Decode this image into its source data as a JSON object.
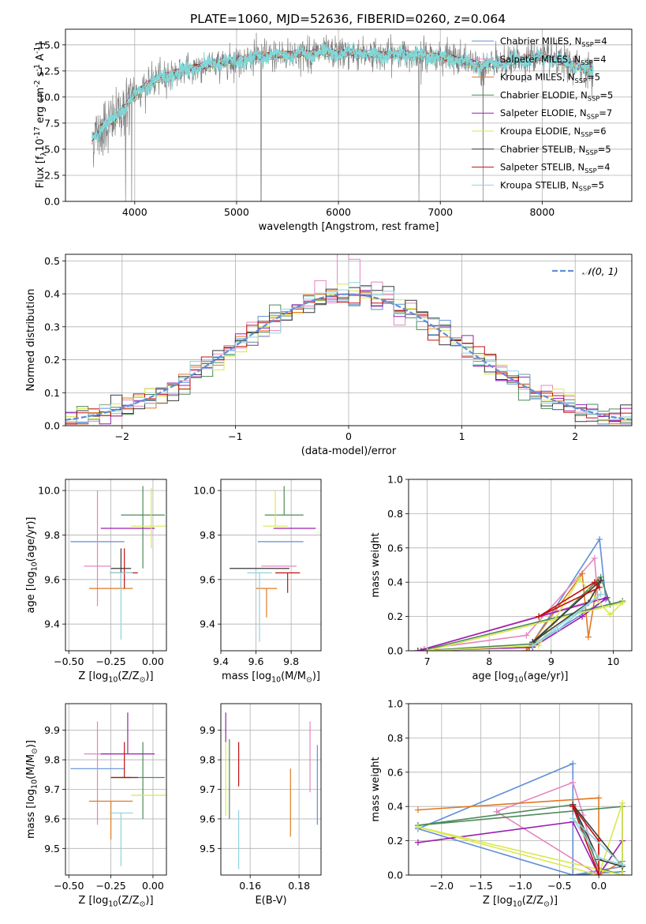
{
  "figure_title": "PLATE=1060, MJD=52636, FIBERID=0260, z=0.064",
  "models": [
    {
      "name": "Chabrier MILES, N$_{SSP}$=4",
      "color": "#5f8fd8"
    },
    {
      "name": "Salpeter MILES, N$_{SSP}$=4",
      "color": "#e585c0"
    },
    {
      "name": "Kroupa MILES, N$_{SSP}$=5",
      "color": "#e07a22"
    },
    {
      "name": "Chabrier ELODIE, N$_{SSP}$=5",
      "color": "#4e8a5a"
    },
    {
      "name": "Salpeter ELODIE, N$_{SSP}$=7",
      "color": "#9a1fb0"
    },
    {
      "name": "Kroupa ELODIE, N$_{SSP}$=6",
      "color": "#d8e84e"
    },
    {
      "name": "Chabrier STELIB, N$_{SSP}$=5",
      "color": "#3a3a3a"
    },
    {
      "name": "Salpeter STELIB, N$_{SSP}$=4",
      "color": "#c01010"
    },
    {
      "name": "Kroupa STELIB, N$_{SSP}$=5",
      "color": "#8fd4dc"
    }
  ],
  "chart_data": [
    {
      "id": "spectrum",
      "type": "line",
      "title": "PLATE=1060, MJD=52636, FIBERID=0260, z=0.064",
      "xlabel": "wavelength [Angstrom, rest frame]",
      "ylabel": "Flux [f$_{\\lambda}$10$^{-17}$ erg cm$^{-2}$ s$^{-1}$ A$^{-1}$]",
      "xlim": [
        3320,
        8880
      ],
      "ylim": [
        0,
        16.5
      ],
      "xticks": [
        4000,
        5000,
        6000,
        7000,
        8000
      ],
      "yticks": [
        0.0,
        2.5,
        5.0,
        7.5,
        10.0,
        12.5,
        15.0
      ],
      "legend": "right, inside",
      "data_color": "#808080",
      "model_color": "#7fd8d8",
      "data_envelope": {
        "x": [
          3580,
          3700,
          3800,
          3900,
          4000,
          4100,
          4200,
          4400,
          4600,
          4800,
          5000,
          5200,
          5400,
          5600,
          5800,
          6000,
          6200,
          6400,
          6600,
          6800,
          7000,
          7200,
          7400,
          7600,
          7800,
          8000,
          8200,
          8400,
          8500
        ],
        "y": [
          6.0,
          7.3,
          7.8,
          9.0,
          10.2,
          11.0,
          11.6,
          12.3,
          12.8,
          13.2,
          13.5,
          13.8,
          14.0,
          14.1,
          14.2,
          14.2,
          14.2,
          14.0,
          14.1,
          14.0,
          13.8,
          13.5,
          13.0,
          13.2,
          13.6,
          13.8,
          13.3,
          12.8,
          12.5
        ]
      },
      "spikes_x": [
        3910,
        3970,
        5240,
        6790,
        7420
      ]
    },
    {
      "id": "residual_hist",
      "type": "histogram",
      "xlabel": "(data-model)/error",
      "ylabel": "Normed distribution",
      "xlim": [
        -2.5,
        2.5
      ],
      "ylim": [
        0,
        0.52
      ],
      "xticks": [
        -2,
        -1,
        0,
        1,
        2
      ],
      "yticks": [
        0.0,
        0.1,
        0.2,
        0.3,
        0.4,
        0.5
      ],
      "legend_label": "$\\mathcal{N}(0,1)$",
      "legend_color": "#5f8fd8",
      "bin_width": 0.1,
      "bins_from": -2.5
    },
    {
      "id": "age_vs_Z",
      "type": "errorbar",
      "xlabel": "Z [log$_{10}$(Z/Z$_\\odot$)]",
      "ylabel": "age  [log$_{10}$(age/yr)]",
      "xlim": [
        -0.52,
        0.08
      ],
      "ylim": [
        9.28,
        10.05
      ],
      "xticks": [
        -0.5,
        -0.25,
        0.0
      ],
      "yticks": [
        9.4,
        9.6,
        9.8,
        10.0
      ],
      "points": [
        {
          "model": 0,
          "x": -0.33,
          "xerr": 0.16,
          "y": 9.77,
          "yerr_lo": 0.0,
          "yerr_hi": 0.0
        },
        {
          "model": 1,
          "x": -0.33,
          "xerr": 0.08,
          "y": 9.66,
          "yerr_lo": 0.18,
          "yerr_hi": 0.34
        },
        {
          "model": 2,
          "x": -0.25,
          "xerr": 0.13,
          "y": 9.56,
          "yerr_lo": 0.0,
          "yerr_hi": 0.0
        },
        {
          "model": 3,
          "x": -0.06,
          "xerr": 0.13,
          "y": 9.89,
          "yerr_lo": 0.24,
          "yerr_hi": 0.13
        },
        {
          "model": 4,
          "x": -0.15,
          "xerr": 0.16,
          "y": 9.83,
          "yerr_lo": 0.0,
          "yerr_hi": 0.0
        },
        {
          "model": 5,
          "x": -0.01,
          "xerr": 0.12,
          "y": 9.84,
          "yerr_lo": 0.1,
          "yerr_hi": 0.17
        },
        {
          "model": 6,
          "x": -0.19,
          "xerr": 0.06,
          "y": 9.65,
          "yerr_lo": 0.09,
          "yerr_hi": 0.09
        },
        {
          "model": 7,
          "x": -0.17,
          "xerr": 0.08,
          "y": 9.63,
          "yerr_lo": 0.07,
          "yerr_hi": 0.11
        },
        {
          "model": 8,
          "x": -0.19,
          "xerr": 0.07,
          "y": 9.63,
          "yerr_lo": 0.3,
          "yerr_hi": 0.0
        }
      ]
    },
    {
      "id": "age_vs_mass",
      "type": "errorbar",
      "xlabel": "mass [log$_{10}$(M/M$_\\odot$)]",
      "ylabel": "",
      "xlim": [
        9.4,
        9.97
      ],
      "ylim": [
        9.28,
        10.05
      ],
      "xticks": [
        9.4,
        9.6,
        9.8
      ],
      "yticks": [
        9.4,
        9.6,
        9.8,
        10.0
      ],
      "points": [
        {
          "model": 0,
          "x": 9.74,
          "xerr": 0.13,
          "y": 9.77,
          "yerr_lo": 0.0,
          "yerr_hi": 0.0
        },
        {
          "model": 1,
          "x": 9.73,
          "xerr": 0.1,
          "y": 9.66,
          "yerr_lo": 0.0,
          "yerr_hi": 0.0
        },
        {
          "model": 2,
          "x": 9.66,
          "xerr": 0.06,
          "y": 9.56,
          "yerr_lo": 0.13,
          "yerr_hi": 0.0
        },
        {
          "model": 3,
          "x": 9.76,
          "xerr": 0.11,
          "y": 9.89,
          "yerr_lo": 0.0,
          "yerr_hi": 0.13
        },
        {
          "model": 4,
          "x": 9.82,
          "xerr": 0.12,
          "y": 9.83,
          "yerr_lo": 0.0,
          "yerr_hi": 0.0
        },
        {
          "model": 5,
          "x": 9.71,
          "xerr": 0.07,
          "y": 9.84,
          "yerr_lo": 0.0,
          "yerr_hi": 0.16
        },
        {
          "model": 6,
          "x": 9.62,
          "xerr": 0.17,
          "y": 9.65,
          "yerr_lo": 0.0,
          "yerr_hi": 0.0
        },
        {
          "model": 7,
          "x": 9.78,
          "xerr": 0.07,
          "y": 9.63,
          "yerr_lo": 0.09,
          "yerr_hi": 0.0
        },
        {
          "model": 8,
          "x": 9.62,
          "xerr": 0.07,
          "y": 9.63,
          "yerr_lo": 0.31,
          "yerr_hi": 0.0
        }
      ]
    },
    {
      "id": "weight_vs_age",
      "type": "line",
      "xlabel": "age  [log$_{10}$(age/yr)]",
      "ylabel": "mass weight",
      "xlim": [
        6.7,
        10.3
      ],
      "ylim": [
        0,
        1.0
      ],
      "xticks": [
        7,
        8,
        9,
        10
      ],
      "yticks": [
        0.0,
        0.2,
        0.4,
        0.6,
        0.8,
        1.0
      ],
      "series": [
        {
          "model": 0,
          "x": [
            8.65,
            9.78,
            9.88,
            8.65
          ],
          "y": [
            0.02,
            0.65,
            0.3,
            0.02
          ]
        },
        {
          "model": 1,
          "x": [
            6.95,
            8.6,
            9.7,
            9.75,
            6.95
          ],
          "y": [
            0.01,
            0.09,
            0.54,
            0.3,
            0.01
          ]
        },
        {
          "model": 2,
          "x": [
            8.6,
            9.5,
            9.6,
            9.75,
            8.6
          ],
          "y": [
            0.0,
            0.45,
            0.08,
            0.41,
            0.0
          ]
        },
        {
          "model": 3,
          "x": [
            6.9,
            8.7,
            9.8,
            9.95,
            10.15,
            6.9
          ],
          "y": [
            0.0,
            0.04,
            0.43,
            0.27,
            0.29,
            0.0
          ]
        },
        {
          "model": 4,
          "x": [
            6.85,
            8.7,
            9.5,
            9.9,
            6.85
          ],
          "y": [
            0.0,
            0.02,
            0.2,
            0.31,
            0.0
          ]
        },
        {
          "model": 5,
          "x": [
            7.0,
            8.8,
            9.45,
            9.95,
            10.15,
            7.0
          ],
          "y": [
            0.0,
            0.03,
            0.42,
            0.21,
            0.28,
            0.0
          ]
        },
        {
          "model": 6,
          "x": [
            8.7,
            9.6,
            9.8,
            8.7
          ],
          "y": [
            0.05,
            0.28,
            0.41,
            0.05
          ]
        },
        {
          "model": 7,
          "x": [
            8.8,
            9.7,
            9.78,
            8.8
          ],
          "y": [
            0.2,
            0.4,
            0.37,
            0.2
          ]
        },
        {
          "model": 8,
          "x": [
            8.7,
            9.1,
            9.8,
            8.7
          ],
          "y": [
            0.03,
            0.12,
            0.33,
            0.03
          ]
        }
      ]
    },
    {
      "id": "mass_vs_Z",
      "type": "errorbar",
      "xlabel": "Z [log$_{10}$(Z/Z$_\\odot$)]",
      "ylabel": "mass [log$_{10}$(M/M$_\\odot$)]",
      "xlim": [
        -0.52,
        0.08
      ],
      "ylim": [
        9.41,
        9.99
      ],
      "xticks": [
        -0.5,
        -0.25,
        0.0
      ],
      "yticks": [
        9.5,
        9.6,
        9.7,
        9.8,
        9.9
      ],
      "points": [
        {
          "model": 0,
          "x": -0.33,
          "xerr": 0.16,
          "y": 9.77,
          "yerr_lo": 0.0,
          "yerr_hi": 0.0
        },
        {
          "model": 1,
          "x": -0.33,
          "xerr": 0.08,
          "y": 9.82,
          "yerr_lo": 0.24,
          "yerr_hi": 0.11
        },
        {
          "model": 2,
          "x": -0.25,
          "xerr": 0.13,
          "y": 9.66,
          "yerr_lo": 0.13,
          "yerr_hi": 0.0
        },
        {
          "model": 3,
          "x": -0.06,
          "xerr": 0.13,
          "y": 9.74,
          "yerr_lo": 0.14,
          "yerr_hi": 0.12
        },
        {
          "model": 4,
          "x": -0.15,
          "xerr": 0.16,
          "y": 9.82,
          "yerr_lo": 0.0,
          "yerr_hi": 0.14
        },
        {
          "model": 5,
          "x": -0.01,
          "xerr": 0.12,
          "y": 9.68,
          "yerr_lo": 0.0,
          "yerr_hi": 0.0
        },
        {
          "model": 6,
          "x": -0.19,
          "xerr": 0.06,
          "y": 9.74,
          "yerr_lo": 0.0,
          "yerr_hi": 0.0
        },
        {
          "model": 7,
          "x": -0.17,
          "xerr": 0.08,
          "y": 9.74,
          "yerr_lo": 0.0,
          "yerr_hi": 0.12
        },
        {
          "model": 8,
          "x": -0.19,
          "xerr": 0.07,
          "y": 9.62,
          "yerr_lo": 0.18,
          "yerr_hi": 0.0
        }
      ]
    },
    {
      "id": "mass_vs_ebv",
      "type": "errorbar",
      "xlabel": "E(B-V)",
      "ylabel": "",
      "xlim": [
        0.148,
        0.189
      ],
      "ylim": [
        9.41,
        9.99
      ],
      "xticks": [
        0.16,
        0.18
      ],
      "yticks": [
        9.5,
        9.6,
        9.7,
        9.8,
        9.9
      ],
      "points": [
        {
          "model": 0,
          "x": 0.1875,
          "xerr": 0.0,
          "y": 9.72,
          "yerr_lo": 0.14,
          "yerr_hi": 0.13
        },
        {
          "model": 1,
          "x": 0.1845,
          "xerr": 0.0,
          "y": 9.81,
          "yerr_lo": 0.12,
          "yerr_hi": 0.12
        },
        {
          "model": 2,
          "x": 0.1765,
          "xerr": 0.0,
          "y": 9.66,
          "yerr_lo": 0.12,
          "yerr_hi": 0.11
        },
        {
          "model": 3,
          "x": 0.1515,
          "xerr": 0.0,
          "y": 9.73,
          "yerr_lo": 0.13,
          "yerr_hi": 0.14
        },
        {
          "model": 4,
          "x": 0.15,
          "xerr": 0.0,
          "y": 9.86,
          "yerr_lo": 0.0,
          "yerr_hi": 0.1
        },
        {
          "model": 5,
          "x": 0.15,
          "xerr": 0.0,
          "y": 9.73,
          "yerr_lo": 0.12,
          "yerr_hi": 0.13
        },
        {
          "model": 6,
          "x": 0.1535,
          "xerr": 0.0,
          "y": 9.71,
          "yerr_lo": 0.0,
          "yerr_hi": 0.0
        },
        {
          "model": 7,
          "x": 0.1553,
          "xerr": 0.0,
          "y": 9.79,
          "yerr_lo": 0.08,
          "yerr_hi": 0.07
        },
        {
          "model": 8,
          "x": 0.1553,
          "xerr": 0.0,
          "y": 9.63,
          "yerr_lo": 0.2,
          "yerr_hi": 0.0
        }
      ]
    },
    {
      "id": "weight_vs_Z",
      "type": "line",
      "xlabel": "Z [log$_{10}$(Z/Z$_\\odot$)]",
      "ylabel": "mass weight",
      "xlim": [
        -2.42,
        0.42
      ],
      "ylim": [
        0,
        1.0
      ],
      "xticks": [
        -2.0,
        -1.5,
        -1.0,
        -0.5,
        0.0
      ],
      "yticks": [
        0.0,
        0.2,
        0.4,
        0.6,
        0.8,
        1.0
      ],
      "series": [
        {
          "model": 0,
          "x": [
            -2.3,
            -0.33,
            -0.33,
            0.3,
            0.3,
            -0.33,
            -2.3
          ],
          "y": [
            0.27,
            0.65,
            0.0,
            0.05,
            0.02,
            0.0,
            0.27
          ]
        },
        {
          "model": 1,
          "x": [
            -1.3,
            -0.33,
            -0.2,
            0.0,
            -1.3
          ],
          "y": [
            0.37,
            0.54,
            0.35,
            0.0,
            0.37
          ]
        },
        {
          "model": 2,
          "x": [
            -2.3,
            0.0,
            0.0,
            0.3,
            0.3
          ],
          "y": [
            0.38,
            0.45,
            0.0,
            0.08,
            0.0
          ]
        },
        {
          "model": 3,
          "x": [
            -2.3,
            -0.33,
            0.0,
            0.3,
            0.3,
            -2.3
          ],
          "y": [
            0.29,
            0.41,
            0.04,
            0.0,
            0.4,
            0.29
          ]
        },
        {
          "model": 4,
          "x": [
            -2.3,
            -0.33,
            0.0,
            0.3
          ],
          "y": [
            0.19,
            0.31,
            0.0,
            0.2
          ]
        },
        {
          "model": 5,
          "x": [
            -2.3,
            0.0,
            0.3,
            0.3,
            -2.3
          ],
          "y": [
            0.28,
            0.0,
            0.42,
            0.0,
            0.28
          ]
        },
        {
          "model": 6,
          "x": [
            -0.33,
            0.0,
            0.3,
            -0.33
          ],
          "y": [
            0.41,
            0.09,
            0.05,
            0.41
          ]
        },
        {
          "model": 7,
          "x": [
            -0.33,
            0.0,
            0.0,
            -0.33
          ],
          "y": [
            0.4,
            0.2,
            0.0,
            0.4
          ]
        },
        {
          "model": 8,
          "x": [
            -0.33,
            0.0,
            0.3,
            -0.33
          ],
          "y": [
            0.33,
            0.1,
            0.06,
            0.33
          ]
        }
      ]
    }
  ]
}
